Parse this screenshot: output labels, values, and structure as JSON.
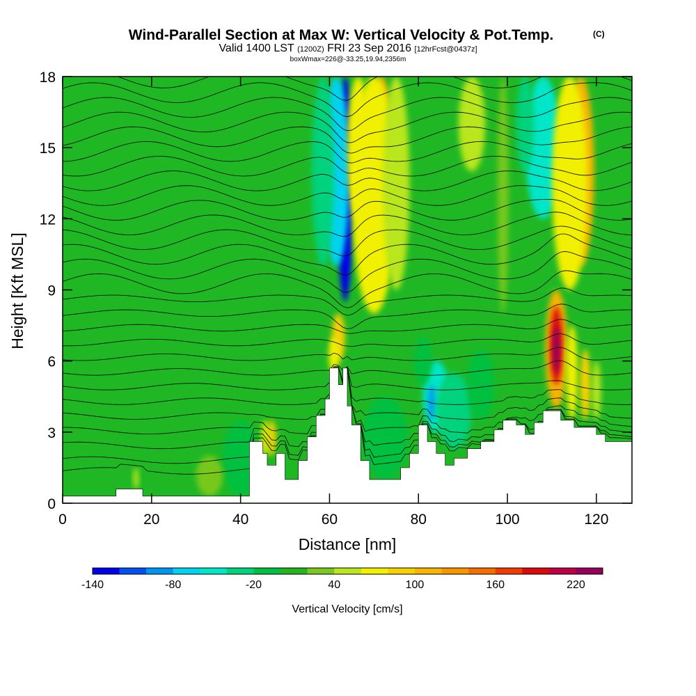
{
  "chart_data": {
    "type": "heatmap",
    "title": "Wind-Parallel Section at Max W: Vertical Velocity & Pot.Temp.",
    "copyright": "(C)",
    "subtitle": {
      "valid": "Valid 1400 LST",
      "utc": "(1200Z)",
      "date": "FRI 23 Sep 2016",
      "forecast": "[12hrFcst@0437z]"
    },
    "box_info": "boxWmax=226@-33.25,19.94,2356m",
    "xlabel": "Distance [nm]",
    "ylabel": "Height [Kft MSL]",
    "xlim": [
      0,
      128
    ],
    "ylim": [
      0,
      18
    ],
    "x_ticks": [
      "0",
      "20",
      "40",
      "60",
      "80",
      "100",
      "120"
    ],
    "y_ticks": [
      "0",
      "3",
      "6",
      "9",
      "12",
      "15",
      "18"
    ],
    "colorbar": {
      "label": "Vertical Velocity [cm/s]",
      "tick_labels": [
        "-140",
        "-80",
        "-20",
        "40",
        "100",
        "160",
        "220"
      ],
      "tick_values": [
        -140,
        -80,
        -20,
        40,
        100,
        160,
        220
      ],
      "range": [
        -140,
        240
      ],
      "step": 20,
      "colors": [
        "#0000e6",
        "#0050f0",
        "#0096f0",
        "#00d2f0",
        "#00e6c8",
        "#00d27d",
        "#00c040",
        "#23b41e",
        "#78c81e",
        "#b9e61e",
        "#f0f000",
        "#f5d200",
        "#f7b400",
        "#f89600",
        "#f56e00",
        "#f03c00",
        "#dc0a0a",
        "#be0046",
        "#96005a"
      ]
    },
    "terrain": [
      [
        0,
        0.3
      ],
      [
        12,
        0.3
      ],
      [
        12,
        0.6
      ],
      [
        18,
        0.6
      ],
      [
        18,
        0.3
      ],
      [
        42,
        0.3
      ],
      [
        42,
        2.6
      ],
      [
        45,
        2.6
      ],
      [
        45,
        2.1
      ],
      [
        46,
        2.1
      ],
      [
        46,
        1.6
      ],
      [
        48,
        1.6
      ],
      [
        48,
        2.1
      ],
      [
        50,
        2.1
      ],
      [
        50,
        1
      ],
      [
        53,
        1
      ],
      [
        53,
        1.8
      ],
      [
        55,
        1.8
      ],
      [
        55,
        2.8
      ],
      [
        57,
        2.8
      ],
      [
        57,
        3.7
      ],
      [
        59,
        3.7
      ],
      [
        59,
        4.4
      ],
      [
        60,
        4.4
      ],
      [
        60,
        5.7
      ],
      [
        62,
        5.7
      ],
      [
        62,
        5
      ],
      [
        63,
        5
      ],
      [
        63,
        5.7
      ],
      [
        64,
        5.7
      ],
      [
        64,
        4.1
      ],
      [
        65,
        4.1
      ],
      [
        65,
        3.3
      ],
      [
        67,
        3.3
      ],
      [
        67,
        1.8
      ],
      [
        69,
        1.8
      ],
      [
        69,
        1
      ],
      [
        76,
        1
      ],
      [
        76,
        1.5
      ],
      [
        78,
        1.5
      ],
      [
        78,
        2.1
      ],
      [
        80,
        2.1
      ],
      [
        80,
        3.3
      ],
      [
        82,
        3.3
      ],
      [
        82,
        2.6
      ],
      [
        84,
        2.6
      ],
      [
        84,
        2.1
      ],
      [
        86,
        2.1
      ],
      [
        86,
        1.6
      ],
      [
        88,
        1.6
      ],
      [
        88,
        1.9
      ],
      [
        91,
        1.9
      ],
      [
        91,
        2.3
      ],
      [
        94,
        2.3
      ],
      [
        94,
        2.6
      ],
      [
        97,
        2.6
      ],
      [
        97,
        3.1
      ],
      [
        99,
        3.1
      ],
      [
        99,
        3.5
      ],
      [
        102,
        3.5
      ],
      [
        102,
        3.3
      ],
      [
        104,
        3.3
      ],
      [
        104,
        2.9
      ],
      [
        106,
        2.9
      ],
      [
        106,
        3.4
      ],
      [
        108,
        3.4
      ],
      [
        108,
        3.9
      ],
      [
        112,
        3.9
      ],
      [
        112,
        3.5
      ],
      [
        115,
        3.5
      ],
      [
        115,
        3.2
      ],
      [
        120,
        3.2
      ],
      [
        120,
        2.9
      ],
      [
        122,
        2.9
      ],
      [
        122,
        2.6
      ],
      [
        128,
        2.6
      ],
      [
        128,
        0
      ]
    ],
    "vertical_velocity_features": [
      {
        "x": 63.5,
        "y0": 8.5,
        "y1": 18,
        "w": 1.8,
        "value": -140
      },
      {
        "x": 61.5,
        "y0": 10,
        "y1": 18,
        "w": 3,
        "value": -70
      },
      {
        "x": 58.5,
        "y0": 10,
        "y1": 18,
        "w": 2.5,
        "value": -40
      },
      {
        "x": 71.5,
        "y0": 11,
        "y1": 18,
        "w": 3,
        "value": 110
      },
      {
        "x": 70,
        "y0": 8,
        "y1": 18,
        "w": 5,
        "value": 60
      },
      {
        "x": 75,
        "y0": 9,
        "y1": 18,
        "w": 3,
        "value": 40
      },
      {
        "x": 62,
        "y0": 6,
        "y1": 8,
        "w": 1.5,
        "value": 80
      },
      {
        "x": 61,
        "y0": 5.5,
        "y1": 7,
        "w": 1.2,
        "value": 60
      },
      {
        "x": 66.5,
        "y0": 12,
        "y1": 18,
        "w": 2.5,
        "value": 60
      },
      {
        "x": 108,
        "y0": 12,
        "y1": 18,
        "w": 4,
        "value": -60
      },
      {
        "x": 116.5,
        "y0": 10,
        "y1": 18,
        "w": 3,
        "value": 110
      },
      {
        "x": 114,
        "y0": 9,
        "y1": 18,
        "w": 4,
        "value": 60
      },
      {
        "x": 104,
        "y0": 14,
        "y1": 18,
        "w": 2,
        "value": -30
      },
      {
        "x": 92,
        "y0": 14,
        "y1": 18,
        "w": 3,
        "value": 50
      },
      {
        "x": 111,
        "y0": 4,
        "y1": 9,
        "w": 2.5,
        "value": 100
      },
      {
        "x": 111,
        "y0": 5,
        "y1": 8.3,
        "w": 1.4,
        "value": 180
      },
      {
        "x": 111,
        "y0": 5.5,
        "y1": 7.5,
        "w": 0.8,
        "value": 220
      },
      {
        "x": 114.5,
        "y0": 3.5,
        "y1": 7.5,
        "w": 1.3,
        "value": 70
      },
      {
        "x": 117.5,
        "y0": 3.5,
        "y1": 6.5,
        "w": 1.2,
        "value": 80
      },
      {
        "x": 120,
        "y0": 3.5,
        "y1": 6,
        "w": 1,
        "value": 50
      },
      {
        "x": 84,
        "y0": 3,
        "y1": 6,
        "w": 3,
        "value": -50
      },
      {
        "x": 83,
        "y0": 3.5,
        "y1": 5,
        "w": 0.8,
        "value": -100
      },
      {
        "x": 88,
        "y0": 2.3,
        "y1": 5.5,
        "w": 4,
        "value": -30
      },
      {
        "x": 94,
        "y0": 3.5,
        "y1": 6.5,
        "w": 3,
        "value": -20
      },
      {
        "x": 40,
        "y0": 0.3,
        "y1": 3.5,
        "w": 4,
        "value": -20
      },
      {
        "x": 72.5,
        "y0": 1,
        "y1": 4.5,
        "w": 5,
        "value": -20
      },
      {
        "x": 47,
        "y0": 2,
        "y1": 3.5,
        "w": 1,
        "value": 90
      },
      {
        "x": 45.5,
        "y0": 2,
        "y1": 3.5,
        "w": 0.8,
        "value": 60
      },
      {
        "x": 16.5,
        "y0": 0.6,
        "y1": 1.5,
        "w": 0.6,
        "value": 50
      },
      {
        "x": 33,
        "y0": 0.3,
        "y1": 2,
        "w": 3,
        "value": 35
      },
      {
        "x": 99,
        "y0": 8,
        "y1": 18,
        "w": 1.2,
        "value": 30
      },
      {
        "x": 81,
        "y0": 5,
        "y1": 7,
        "w": 2,
        "value": -20
      }
    ],
    "isentrope_count": 28
  }
}
